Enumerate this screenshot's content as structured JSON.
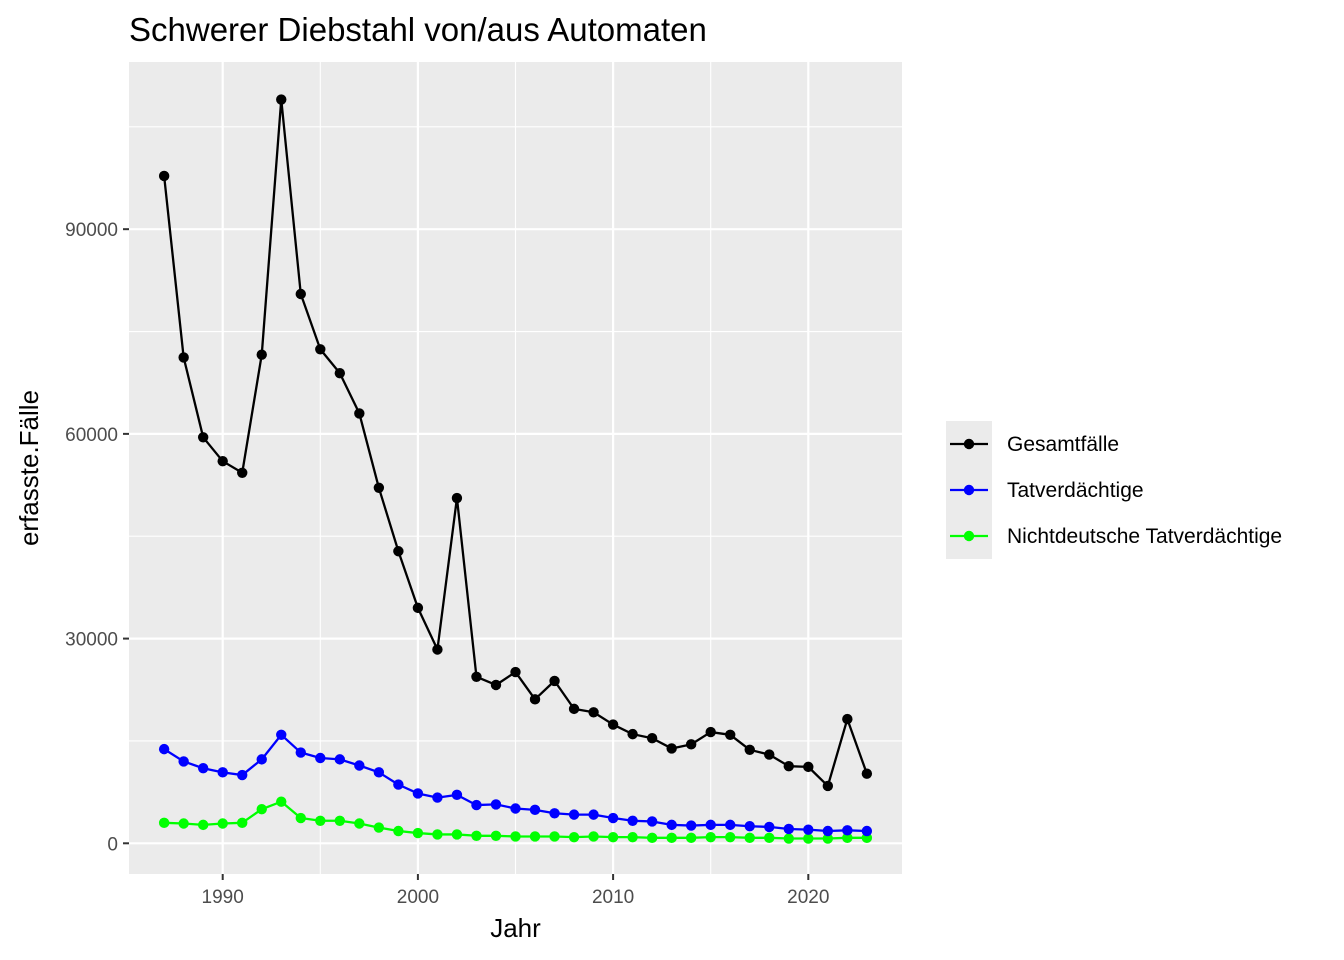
{
  "chart_data": {
    "type": "line",
    "title": "Schwerer Diebstahl von/aus Automaten",
    "xlabel": "Jahr",
    "ylabel": "erfasste.Fälle",
    "xlim": [
      1985.2,
      2024.8
    ],
    "ylim": [
      -4500,
      114500
    ],
    "x_ticks": [
      1990,
      2000,
      2010,
      2020
    ],
    "y_ticks": [
      0,
      30000,
      60000,
      90000
    ],
    "grid": true,
    "legend_position": "right",
    "x": [
      1987,
      1988,
      1989,
      1990,
      1991,
      1992,
      1993,
      1994,
      1995,
      1996,
      1997,
      1998,
      1999,
      2000,
      2001,
      2002,
      2003,
      2004,
      2005,
      2006,
      2007,
      2008,
      2009,
      2010,
      2011,
      2012,
      2013,
      2014,
      2015,
      2016,
      2017,
      2018,
      2019,
      2020,
      2021,
      2022,
      2023
    ],
    "series": [
      {
        "name": "Gesamtfälle",
        "color": "#000000",
        "values": [
          97800,
          71200,
          59500,
          56000,
          54300,
          71600,
          109000,
          80500,
          72400,
          68900,
          63000,
          52100,
          42800,
          34500,
          28400,
          50600,
          24400,
          23200,
          25100,
          21100,
          23800,
          19700,
          19200,
          17400,
          16000,
          15400,
          13900,
          14500,
          16300,
          15900,
          13700,
          13000,
          11300,
          11200,
          8400,
          18200,
          10200
        ]
      },
      {
        "name": "Tatverdächtige",
        "color": "#0000ff",
        "values": [
          13800,
          12000,
          11000,
          10400,
          10000,
          12300,
          15900,
          13300,
          12500,
          12300,
          11400,
          10400,
          8600,
          7300,
          6700,
          7100,
          5600,
          5700,
          5100,
          4900,
          4400,
          4200,
          4200,
          3700,
          3300,
          3200,
          2700,
          2600,
          2700,
          2700,
          2500,
          2400,
          2100,
          2000,
          1800,
          1900,
          1800
        ]
      },
      {
        "name": "Nichtdeutsche Tatverdächtige",
        "color": "#00ff00",
        "values": [
          3000,
          2900,
          2700,
          2900,
          3000,
          5000,
          6100,
          3700,
          3300,
          3300,
          2900,
          2300,
          1800,
          1500,
          1300,
          1300,
          1100,
          1100,
          1000,
          1000,
          1000,
          900,
          1000,
          900,
          900,
          800,
          800,
          800,
          900,
          900,
          800,
          800,
          700,
          700,
          700,
          800,
          800
        ]
      }
    ]
  }
}
